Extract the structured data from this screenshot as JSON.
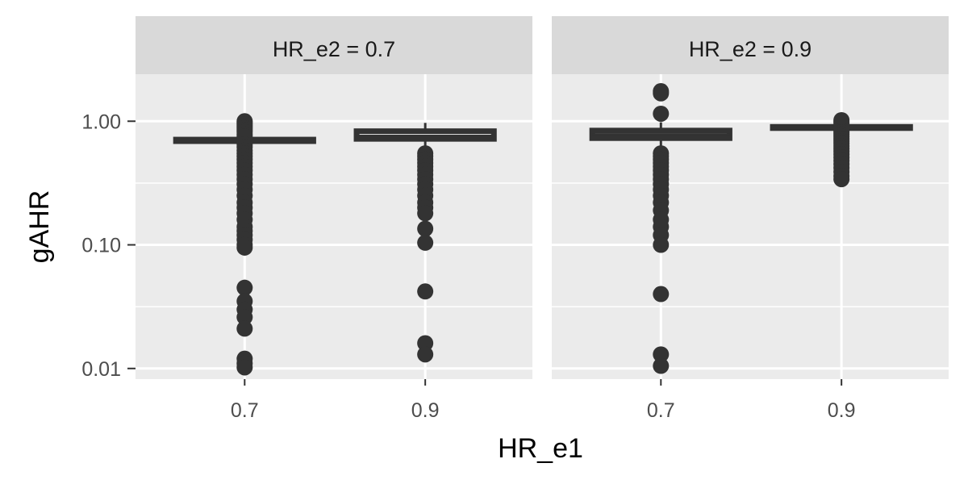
{
  "chart_data": {
    "type": "boxplot",
    "xlabel": "HR_e1",
    "ylabel": "gAHR",
    "y_scale": "log10",
    "ylim": [
      0.0082,
      2.4
    ],
    "yticks": [
      {
        "value": 0.01,
        "label": "0.01"
      },
      {
        "value": 0.1,
        "label": "0.10"
      },
      {
        "value": 1.0,
        "label": "1.00"
      }
    ],
    "y_minor_gridlines": [
      0.0316,
      0.316
    ],
    "categories": [
      "0.7",
      "0.9"
    ],
    "grid": true,
    "colors": {
      "panel_background": "#ebebeb",
      "strip_background": "#d9d9d9",
      "gridline": "#ffffff",
      "box": "#333333",
      "points": "#333333"
    },
    "panels": [
      {
        "strip_label": "HR_e2 = 0.7",
        "boxes": [
          {
            "category": "0.7",
            "q1": 0.69,
            "median": 0.7,
            "q3": 0.71,
            "whisker_low": 0.68,
            "whisker_high": 0.72,
            "outliers": [
              1.0,
              0.97,
              0.94,
              0.91,
              0.88,
              0.85,
              0.82,
              0.78,
              0.75,
              0.65,
              0.62,
              0.58,
              0.55,
              0.52,
              0.49,
              0.46,
              0.43,
              0.4,
              0.37,
              0.34,
              0.31,
              0.28,
              0.25,
              0.22,
              0.2,
              0.18,
              0.16,
              0.14,
              0.13,
              0.12,
              0.11,
              0.1,
              0.095,
              0.045,
              0.035,
              0.03,
              0.026,
              0.021,
              0.012,
              0.011,
              0.0102
            ]
          },
          {
            "category": "0.9",
            "q1": 0.72,
            "median": 0.76,
            "q3": 0.83,
            "whisker_low": 0.6,
            "whisker_high": 0.97,
            "outliers": [
              0.55,
              0.52,
              0.49,
              0.46,
              0.43,
              0.4,
              0.37,
              0.34,
              0.31,
              0.28,
              0.25,
              0.22,
              0.2,
              0.18,
              0.135,
              0.104,
              0.042,
              0.016,
              0.013
            ]
          }
        ]
      },
      {
        "strip_label": "HR_e2 = 0.9",
        "boxes": [
          {
            "category": "0.7",
            "q1": 0.73,
            "median": 0.78,
            "q3": 0.84,
            "whisker_low": 0.6,
            "whisker_high": 0.98,
            "outliers": [
              1.75,
              1.68,
              1.15,
              0.55,
              0.52,
              0.49,
              0.46,
              0.43,
              0.4,
              0.37,
              0.34,
              0.31,
              0.28,
              0.25,
              0.22,
              0.19,
              0.16,
              0.14,
              0.12,
              0.1,
              0.04,
              0.013,
              0.0105
            ]
          },
          {
            "category": "0.9",
            "q1": 0.88,
            "median": 0.89,
            "q3": 0.9,
            "whisker_low": 0.86,
            "whisker_high": 0.92,
            "outliers": [
              1.02,
              0.99,
              0.96,
              0.84,
              0.81,
              0.78,
              0.75,
              0.72,
              0.69,
              0.66,
              0.63,
              0.6,
              0.57,
              0.54,
              0.51,
              0.48,
              0.45,
              0.42,
              0.39,
              0.36,
              0.34
            ]
          }
        ]
      }
    ]
  }
}
